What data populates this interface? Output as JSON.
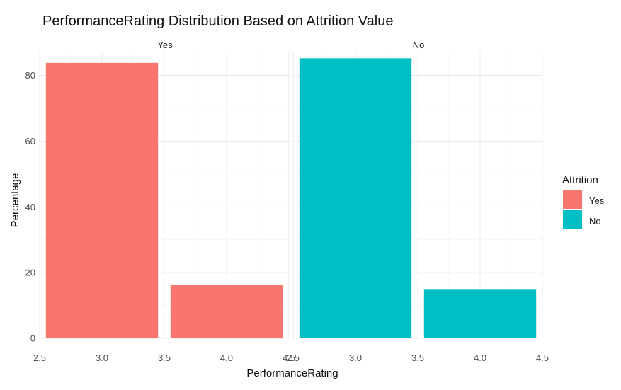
{
  "chart_data": {
    "type": "bar",
    "title": "PerformanceRating Distribution Based on Attrition Value",
    "xlabel": "PerformanceRating",
    "ylabel": "Percentage",
    "facets": [
      {
        "label": "Yes",
        "fill": "#F8766D",
        "x": [
          3,
          4
        ],
        "values": [
          83.8,
          16.2
        ]
      },
      {
        "label": "No",
        "fill": "#00BFC4",
        "x": [
          3,
          4
        ],
        "values": [
          85.2,
          14.8
        ]
      }
    ],
    "xlim": [
      2.5,
      4.5
    ],
    "ylim": [
      0,
      87
    ],
    "x_ticks": [
      "2.5",
      "3.0",
      "3.5",
      "4.0",
      "4.5"
    ],
    "y_ticks": [
      "0",
      "20",
      "40",
      "60",
      "80"
    ],
    "bar_width": 0.9,
    "grid": true,
    "legend": {
      "title": "Attrition",
      "position": "right",
      "items": [
        {
          "label": "Yes",
          "color": "#F8766D"
        },
        {
          "label": "No",
          "color": "#00BFC4"
        }
      ]
    }
  }
}
